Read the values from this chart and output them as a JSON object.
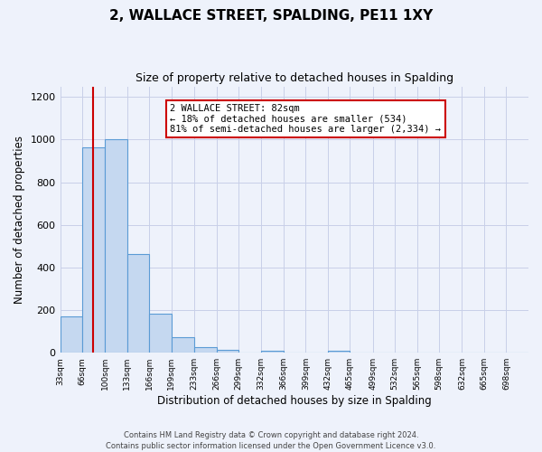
{
  "title": "2, WALLACE STREET, SPALDING, PE11 1XY",
  "subtitle": "Size of property relative to detached houses in Spalding",
  "xlabel": "Distribution of detached houses by size in Spalding",
  "ylabel": "Number of detached properties",
  "bin_labels": [
    "33sqm",
    "66sqm",
    "100sqm",
    "133sqm",
    "166sqm",
    "199sqm",
    "233sqm",
    "266sqm",
    "299sqm",
    "332sqm",
    "366sqm",
    "399sqm",
    "432sqm",
    "465sqm",
    "499sqm",
    "532sqm",
    "565sqm",
    "598sqm",
    "632sqm",
    "665sqm",
    "698sqm"
  ],
  "bin_edges": [
    33,
    66,
    100,
    133,
    166,
    199,
    233,
    266,
    299,
    332,
    366,
    399,
    432,
    465,
    499,
    532,
    565,
    598,
    632,
    665,
    698,
    731
  ],
  "bar_heights": [
    170,
    965,
    1000,
    465,
    185,
    75,
    25,
    15,
    0,
    10,
    0,
    0,
    10,
    0,
    0,
    0,
    0,
    0,
    0,
    0,
    0
  ],
  "bar_color": "#c5d8f0",
  "bar_edge_color": "#5b9bd5",
  "property_size": 82,
  "red_line_color": "#cc0000",
  "annotation_box_color": "#ffffff",
  "annotation_border_color": "#cc0000",
  "annotation_text_line1": "2 WALLACE STREET: 82sqm",
  "annotation_text_line2": "← 18% of detached houses are smaller (534)",
  "annotation_text_line3": "81% of semi-detached houses are larger (2,334) →",
  "ylim": [
    0,
    1250
  ],
  "yticks": [
    0,
    200,
    400,
    600,
    800,
    1000,
    1200
  ],
  "footer_line1": "Contains HM Land Registry data © Crown copyright and database right 2024.",
  "footer_line2": "Contains public sector information licensed under the Open Government Licence v3.0.",
  "background_color": "#eef2fb",
  "plot_bg_color": "#eef2fb",
  "grid_color": "#c8cfe8"
}
